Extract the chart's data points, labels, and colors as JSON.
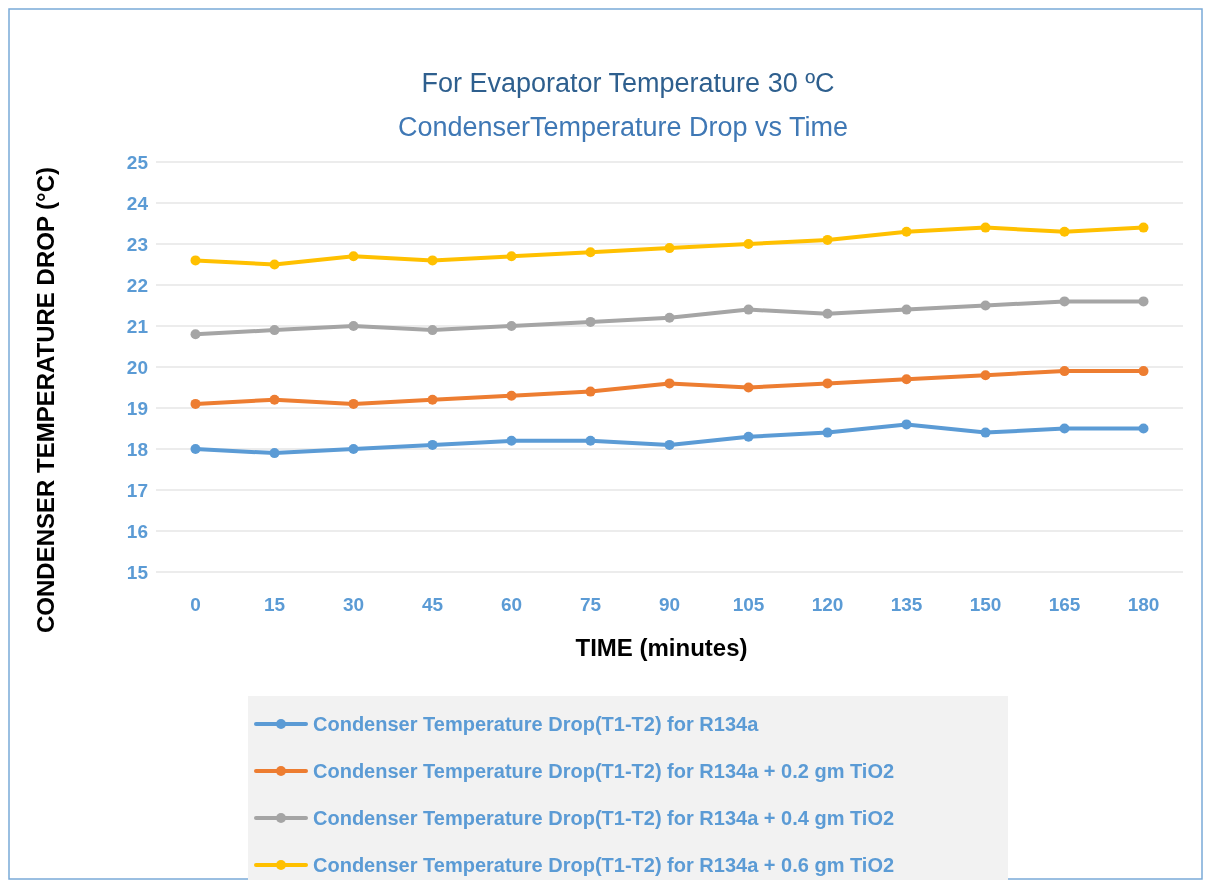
{
  "chart_data": {
    "type": "line",
    "title": "For Evaporator Temperature 30 ºC",
    "subtitle": "CondenserTemperature Drop vs Time",
    "xlabel": "TIME (minutes)",
    "ylabel": "CONDENSER TEMPERATURE DROP  (°C)",
    "categories": [
      "0",
      "15",
      "30",
      "45",
      "60",
      "75",
      "90",
      "105",
      "120",
      "135",
      "150",
      "165",
      "180"
    ],
    "ylim": [
      15,
      25
    ],
    "yticks": [
      15,
      16,
      17,
      18,
      19,
      20,
      21,
      22,
      23,
      24,
      25
    ],
    "grid": "y",
    "legend": "bottom",
    "marker": "circle",
    "line_style": "solid",
    "series": [
      {
        "name": "Condenser Temperature Drop(T1-T2) for R134a",
        "color": "#5b9bd5",
        "values": [
          18.0,
          17.9,
          18.0,
          18.1,
          18.2,
          18.2,
          18.1,
          18.3,
          18.4,
          18.6,
          18.4,
          18.5,
          18.5
        ]
      },
      {
        "name": "Condenser Temperature Drop(T1-T2) for R134a + 0.2 gm TiO2",
        "color": "#ed7d31",
        "values": [
          19.1,
          19.2,
          19.1,
          19.2,
          19.3,
          19.4,
          19.6,
          19.5,
          19.6,
          19.7,
          19.8,
          19.9,
          19.9
        ]
      },
      {
        "name": "Condenser Temperature Drop(T1-T2) for R134a + 0.4 gm TiO2",
        "color": "#a5a5a5",
        "values": [
          20.8,
          20.9,
          21.0,
          20.9,
          21.0,
          21.1,
          21.2,
          21.4,
          21.3,
          21.4,
          21.5,
          21.6,
          21.6
        ]
      },
      {
        "name": "Condenser Temperature Drop(T1-T2) for R134a + 0.6 gm TiO2",
        "color": "#ffc000",
        "values": [
          22.6,
          22.5,
          22.7,
          22.6,
          22.7,
          22.8,
          22.9,
          23.0,
          23.1,
          23.3,
          23.4,
          23.3,
          23.4
        ]
      }
    ]
  }
}
